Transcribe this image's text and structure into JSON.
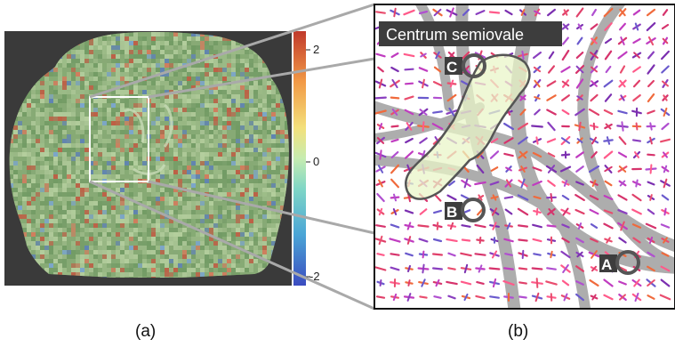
{
  "panels": {
    "a": {
      "label": "(a)"
    },
    "b": {
      "label": "(b)"
    }
  },
  "colorbar": {
    "ticks": [
      "2",
      "0",
      "-2"
    ],
    "range": [
      -2.7,
      2.7
    ],
    "colormap": [
      "#3b4cc0",
      "#4aa5d6",
      "#7fd6c6",
      "#f3e07b",
      "#f29a46",
      "#c0392b"
    ]
  },
  "zoom": {
    "title": "Centrum semiovale",
    "markers": [
      {
        "id": "C",
        "label": "C"
      },
      {
        "id": "B",
        "label": "B"
      },
      {
        "id": "A",
        "label": "A"
      }
    ]
  },
  "colors": {
    "brain_background": "#3a3a3a",
    "tract_band": "#a9a9a9",
    "roi_fill": "#e9f5c8",
    "roi_stroke": "#555555",
    "marker_stroke": "#555555",
    "title_box": "#3d3d3d",
    "zoom_border": "#111111",
    "box_white": "#ffffff"
  }
}
